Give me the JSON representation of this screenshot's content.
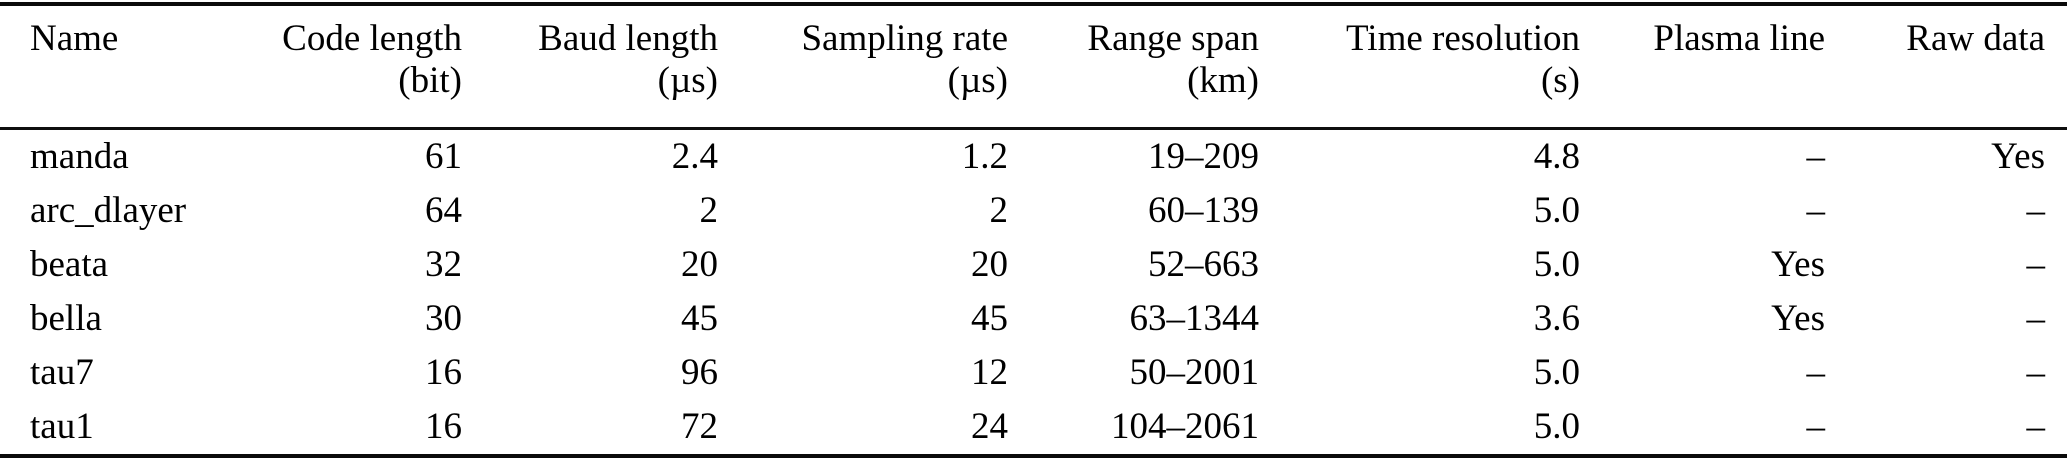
{
  "table": {
    "columns": [
      {
        "label": "Name",
        "unit": ""
      },
      {
        "label": "Code length",
        "unit": "(bit)"
      },
      {
        "label": "Baud length",
        "unit": "(µs)"
      },
      {
        "label": "Sampling rate",
        "unit": "(µs)"
      },
      {
        "label": "Range span",
        "unit": "(km)"
      },
      {
        "label": "Time resolution",
        "unit": "(s)"
      },
      {
        "label": "Plasma line",
        "unit": ""
      },
      {
        "label": "Raw data",
        "unit": ""
      }
    ],
    "rows": [
      [
        "manda",
        "61",
        "2.4",
        "1.2",
        "19–209",
        "4.8",
        "–",
        "Yes"
      ],
      [
        "arc_dlayer",
        "64",
        "2",
        "2",
        "60–139",
        "5.0",
        "–",
        "–"
      ],
      [
        "beata",
        "32",
        "20",
        "20",
        "52–663",
        "5.0",
        "Yes",
        "–"
      ],
      [
        "bella",
        "30",
        "45",
        "45",
        "63–1344",
        "3.6",
        "Yes",
        "–"
      ],
      [
        "tau7",
        "16",
        "96",
        "12",
        "50–2001",
        "5.0",
        "–",
        "–"
      ],
      [
        "tau1",
        "16",
        "72",
        "24",
        "104–2061",
        "5.0",
        "–",
        "–"
      ]
    ]
  },
  "colors": {
    "background": "#ffffff",
    "text": "#000000",
    "rule": "#0a0a0a"
  }
}
